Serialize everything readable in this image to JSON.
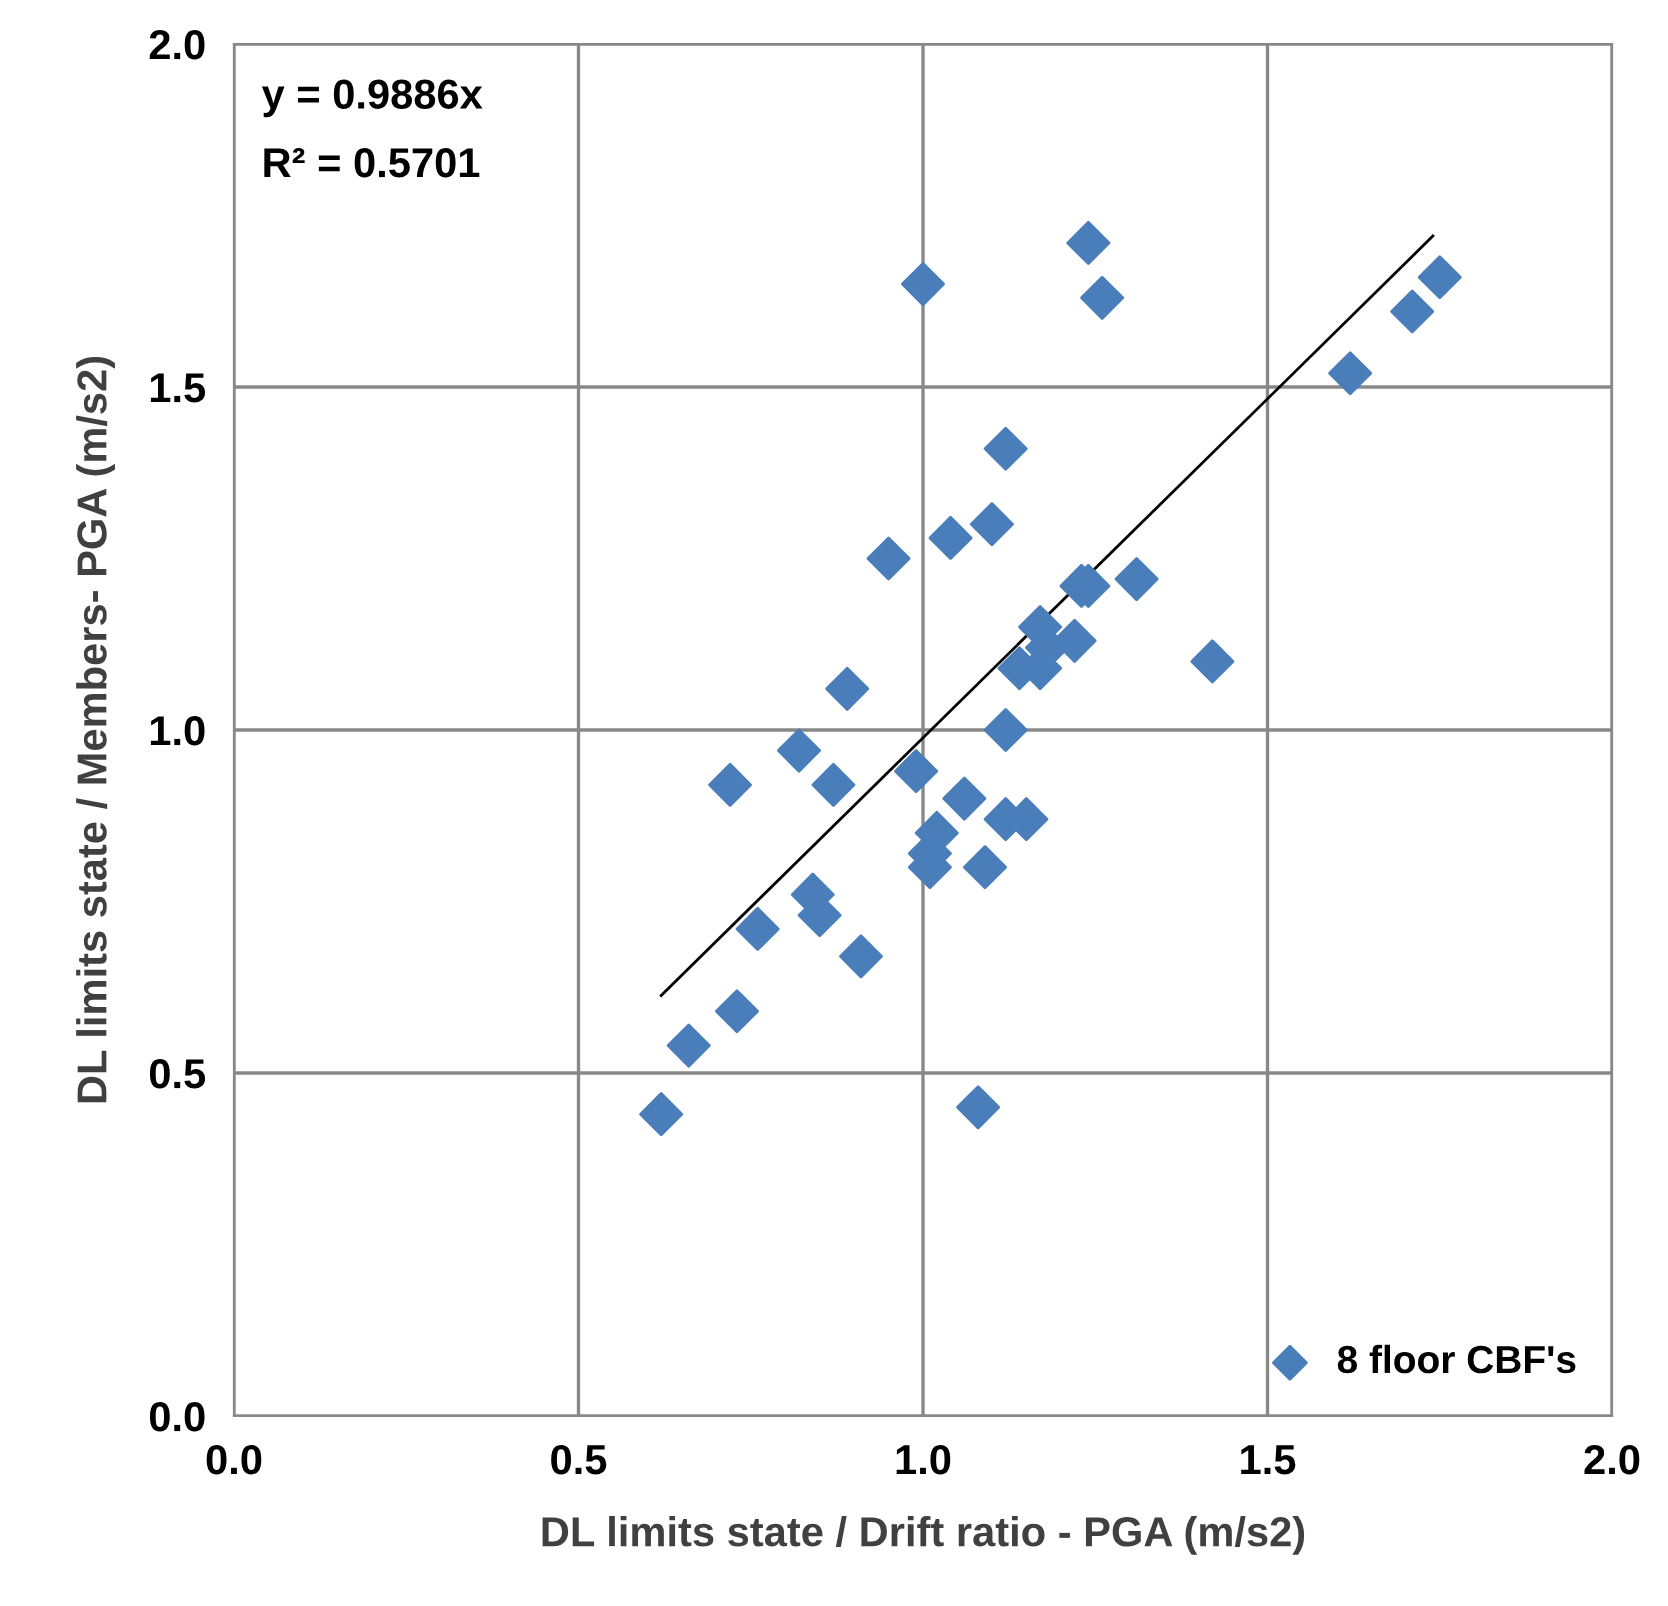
{
  "chart_data": {
    "type": "scatter",
    "xlabel": "DL limits state / Drift ratio - PGA (m/s2)",
    "ylabel": "DL limits state / Members- PGA (m/s2)",
    "xlim": [
      0,
      2
    ],
    "ylim": [
      0,
      2
    ],
    "xticks": [
      {
        "value": 0,
        "label": "0.0"
      },
      {
        "value": 0.5,
        "label": "0.5"
      },
      {
        "value": 1,
        "label": "1.0"
      },
      {
        "value": 1.5,
        "label": "1.5"
      },
      {
        "value": 2,
        "label": "2.0"
      }
    ],
    "yticks": [
      {
        "value": 0,
        "label": "0.0"
      },
      {
        "value": 0.5,
        "label": "0.5"
      },
      {
        "value": 1,
        "label": "1.0"
      },
      {
        "value": 1.5,
        "label": "1.5"
      },
      {
        "value": 2,
        "label": "2.0"
      }
    ],
    "grid": true,
    "legend": "bottom right",
    "annotations": [
      "y = 0.9886x",
      "R² = 0.5701"
    ],
    "series": [
      {
        "name": "8 floor CBF's",
        "marker": "diamond",
        "color": "#4a7ebb",
        "x": [
          0.62,
          0.66,
          0.73,
          0.76,
          0.72,
          0.82,
          0.84,
          0.85,
          0.87,
          0.89,
          0.91,
          0.95,
          0.99,
          1.0,
          1.02,
          1.01,
          1.01,
          1.06,
          1.09,
          1.08,
          1.12,
          1.15,
          1.12,
          1.24,
          1.26,
          1.62,
          1.71,
          1.75,
          1.12,
          1.04,
          1.1,
          1.23,
          1.24,
          1.31,
          1.17,
          1.18,
          1.22,
          1.14,
          1.17,
          1.42
        ],
        "values": [
          0.44,
          0.54,
          0.59,
          0.71,
          0.92,
          0.97,
          0.76,
          0.73,
          0.92,
          1.06,
          0.67,
          1.25,
          0.94,
          1.65,
          0.85,
          0.82,
          0.8,
          0.9,
          0.8,
          0.45,
          0.87,
          0.87,
          1.0,
          1.71,
          1.63,
          1.52,
          1.61,
          1.66,
          1.41,
          1.28,
          1.3,
          1.21,
          1.21,
          1.22,
          1.15,
          1.12,
          1.13,
          1.09,
          1.09,
          1.1
        ]
      },
      {
        "type": "line",
        "marker": "none",
        "color": "#000000",
        "x": [
          0.62,
          1.74
        ],
        "values": [
          0.613,
          1.72
        ]
      }
    ]
  }
}
